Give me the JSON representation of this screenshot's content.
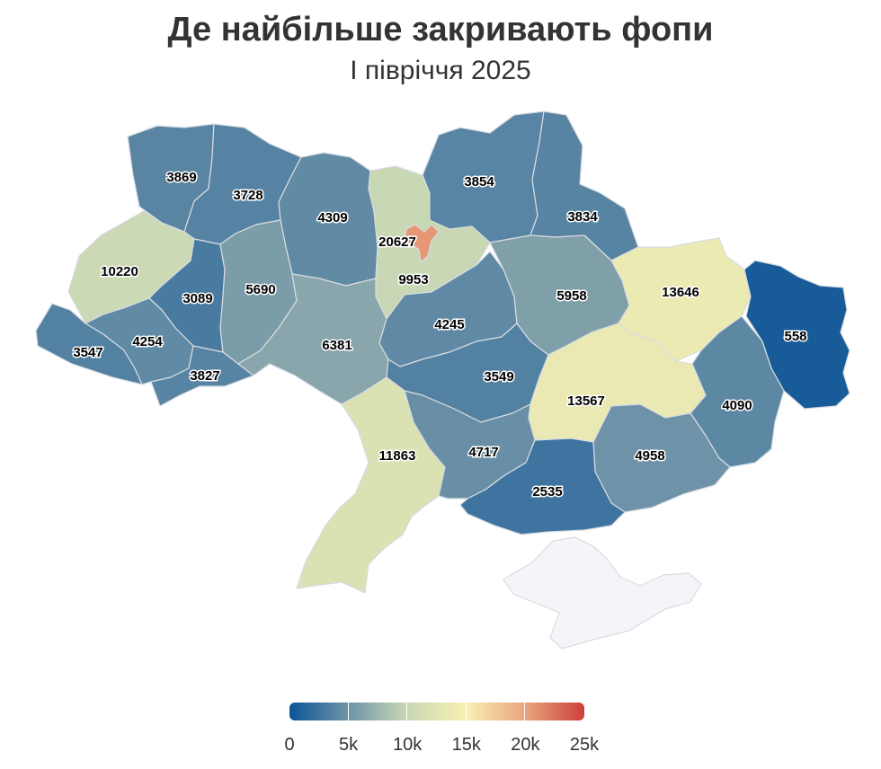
{
  "header": {
    "title": "Де найбільше закривають фопи",
    "subtitle": "І півріччя 2025"
  },
  "map": {
    "regions": [
      {
        "id": "volyn",
        "value": 3869
      },
      {
        "id": "rivne",
        "value": 3728
      },
      {
        "id": "zhytomyr",
        "value": 4309
      },
      {
        "id": "kyiv-oblast",
        "value": 9953
      },
      {
        "id": "kyiv-city",
        "value": 20627
      },
      {
        "id": "chernihiv",
        "value": 3854
      },
      {
        "id": "sumy",
        "value": 3834
      },
      {
        "id": "lviv",
        "value": 10220
      },
      {
        "id": "ternopil",
        "value": 3089
      },
      {
        "id": "khmelnytskyi",
        "value": 5690
      },
      {
        "id": "zakarpattia",
        "value": 3547
      },
      {
        "id": "ivano-frankivsk",
        "value": 4254
      },
      {
        "id": "chernivtsi",
        "value": 3827
      },
      {
        "id": "vinnytsia",
        "value": 6381
      },
      {
        "id": "cherkasy",
        "value": 4245
      },
      {
        "id": "poltava",
        "value": 5958
      },
      {
        "id": "kharkiv",
        "value": 13646
      },
      {
        "id": "luhansk",
        "value": 558
      },
      {
        "id": "kirovohrad",
        "value": 3549
      },
      {
        "id": "dnipro",
        "value": 13567
      },
      {
        "id": "donetsk",
        "value": 4090
      },
      {
        "id": "odesa",
        "value": 11863
      },
      {
        "id": "mykolaiv",
        "value": 4717
      },
      {
        "id": "zaporizhzhia",
        "value": 4958
      },
      {
        "id": "kherson",
        "value": 2535
      },
      {
        "id": "crimea",
        "value": null
      }
    ],
    "no_data_color": "#f4f5f8"
  },
  "legend": {
    "min": 0,
    "max": 25000,
    "ticks": [
      {
        "value": 0,
        "label": "0"
      },
      {
        "value": 5000,
        "label": "5k"
      },
      {
        "value": 10000,
        "label": "10k"
      },
      {
        "value": 15000,
        "label": "15k"
      },
      {
        "value": 20000,
        "label": "20k"
      },
      {
        "value": 25000,
        "label": "25k"
      }
    ],
    "color_stops": [
      {
        "value": 0,
        "color": "#0c5497"
      },
      {
        "value": 5000,
        "color": "#6f93a7"
      },
      {
        "value": 10000,
        "color": "#c9d8b4"
      },
      {
        "value": 15000,
        "color": "#f7f0b2"
      },
      {
        "value": 20000,
        "color": "#eaa57d"
      },
      {
        "value": 25000,
        "color": "#cc3f3c"
      }
    ]
  }
}
